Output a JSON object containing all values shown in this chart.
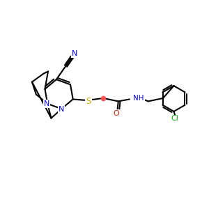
{
  "background": "#ffffff",
  "bond_color": "#000000",
  "nitrogen_color": "#0000dd",
  "sulfur_color": "#ccaa00",
  "oxygen_color": "#cc2200",
  "chlorine_color": "#00aa00",
  "line_width": 1.5,
  "dpi": 100,
  "figsize": [
    3.0,
    3.0
  ],
  "xlim": [
    0,
    10
  ],
  "ylim": [
    1,
    9
  ]
}
